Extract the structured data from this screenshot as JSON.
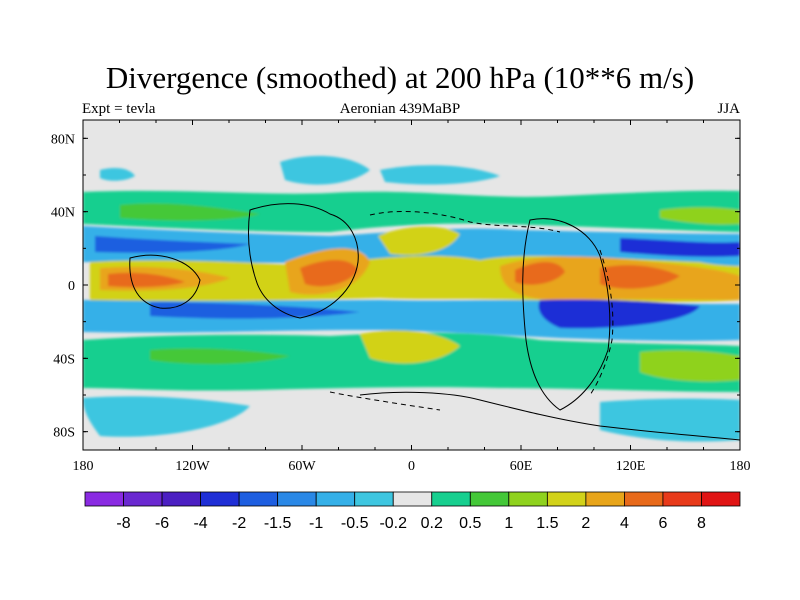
{
  "title": "Divergence (smoothed) at 200 hPa (10**6 m/s)",
  "subtitle_left": "Expt = tevla",
  "subtitle_center": "Aeronian 439MaBP",
  "subtitle_right": "JJA",
  "axes": {
    "x_ticks": [
      "180",
      "120W",
      "60W",
      "0",
      "60E",
      "120E",
      "180"
    ],
    "y_ticks": [
      "80N",
      "40N",
      "0",
      "40S",
      "80S"
    ]
  },
  "colorbar": {
    "labels": [
      "-8",
      "-6",
      "-4",
      "-2",
      "-1.5",
      "-1",
      "-0.5",
      "-0.2",
      "0.2",
      "0.5",
      "1",
      "1.5",
      "2",
      "4",
      "6",
      "8"
    ],
    "colors": [
      "#8a2be2",
      "#6a28d0",
      "#4b1fc2",
      "#1f2fd6",
      "#1e5ee0",
      "#2a88e6",
      "#35b0e8",
      "#3ec6e0",
      "#e6e6e6",
      "#17cf8f",
      "#44c838",
      "#8fd21e",
      "#d2d219",
      "#e8a51a",
      "#e86a1a",
      "#e83a1a",
      "#e01414"
    ]
  },
  "colors": {
    "background_field": "#e6e6e6",
    "coastline": "#000000"
  }
}
